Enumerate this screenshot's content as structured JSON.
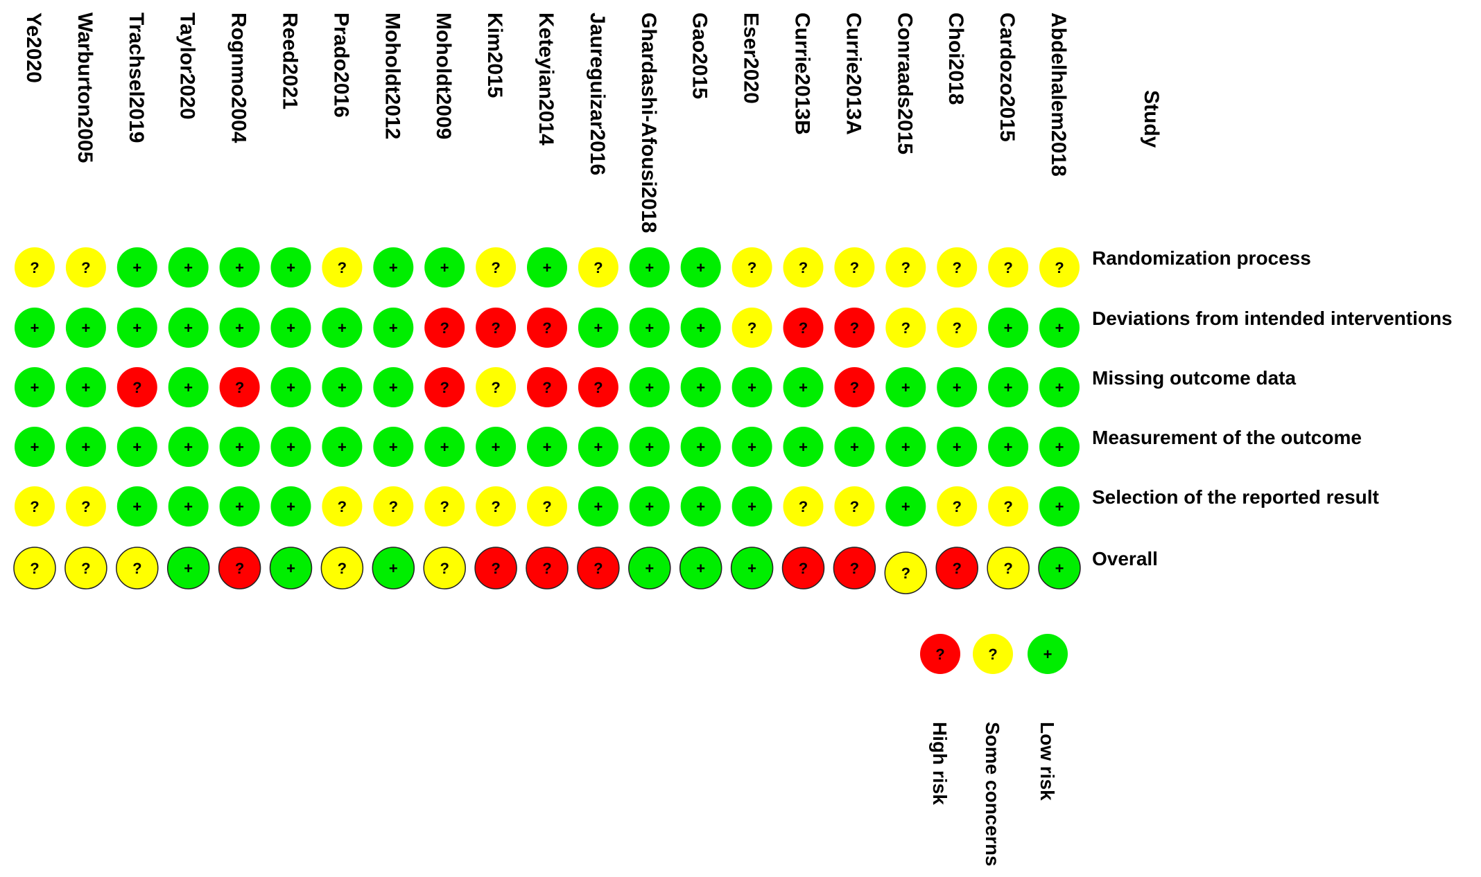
{
  "chart_data": {
    "type": "table",
    "title": "",
    "study_header": "Study",
    "studies": [
      "Ye2020",
      "Warburton2005",
      "Trachsel2019",
      "Taylor2020",
      "Rognmo2004",
      "Reed2021",
      "Prado2016",
      "Moholdt2012",
      "Moholdt2009",
      "Kim2015",
      "Keteyian2014",
      "Jaureguizar2016",
      "Ghardashi-Afousi2018",
      "Gao2015",
      "Eser2020",
      "Currie2013B",
      "Currie2013A",
      "Conraads2015",
      "Choi2018",
      "Cardozo2015",
      "Abdelhalem2018"
    ],
    "domains": [
      "Randomization process",
      "Deviations from intended interventions",
      "Missing outcome data",
      "Measurement of the outcome",
      "Selection of the reported result",
      "Overall"
    ],
    "judgements": [
      [
        "some",
        "some",
        "low",
        "low",
        "low",
        "low",
        "some",
        "low",
        "low",
        "some",
        "low",
        "some",
        "low",
        "low",
        "some",
        "some",
        "some",
        "some",
        "some",
        "some",
        "some"
      ],
      [
        "low",
        "low",
        "low",
        "low",
        "low",
        "low",
        "low",
        "low",
        "high",
        "high",
        "high",
        "low",
        "low",
        "low",
        "some",
        "high",
        "high",
        "some",
        "some",
        "low",
        "low"
      ],
      [
        "low",
        "low",
        "high",
        "low",
        "high",
        "low",
        "low",
        "low",
        "high",
        "some",
        "high",
        "high",
        "low",
        "low",
        "low",
        "low",
        "high",
        "low",
        "low",
        "low",
        "low"
      ],
      [
        "low",
        "low",
        "low",
        "low",
        "low",
        "low",
        "low",
        "low",
        "low",
        "low",
        "low",
        "low",
        "low",
        "low",
        "low",
        "low",
        "low",
        "low",
        "low",
        "low",
        "low"
      ],
      [
        "some",
        "some",
        "low",
        "low",
        "low",
        "low",
        "some",
        "some",
        "some",
        "some",
        "some",
        "low",
        "low",
        "low",
        "low",
        "some",
        "some",
        "low",
        "some",
        "some",
        "low"
      ],
      [
        "some",
        "some",
        "some",
        "low",
        "high",
        "low",
        "some",
        "low",
        "some",
        "high",
        "high",
        "high",
        "low",
        "low",
        "low",
        "high",
        "high",
        "some",
        "high",
        "some",
        "low"
      ]
    ],
    "levels": {
      "high": {
        "label": "High risk",
        "symbol": "?",
        "color": "#ff0000"
      },
      "some": {
        "label": "Some concerns",
        "symbol": "?",
        "color": "#ffff00"
      },
      "low": {
        "label": "Low risk",
        "symbol": "+",
        "color": "#00ee00"
      }
    },
    "legend_order": [
      "high",
      "some",
      "low"
    ]
  }
}
